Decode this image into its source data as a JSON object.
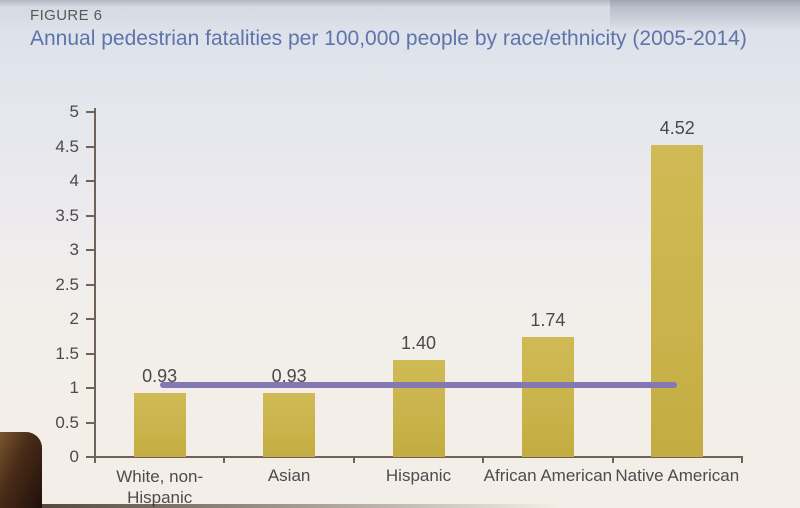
{
  "figure": {
    "label": "FIGURE 6",
    "title": "Annual pedestrian fatalities per 100,000 people by race/ethnicity (2005-2014)"
  },
  "colors": {
    "bar_gold": "#c9b34a",
    "reference_line_purple": "#8478b3",
    "title_blue": "#5e74ab",
    "figure_label_gray": "#58585a",
    "axis_brown_gray": "#6e6259",
    "label_text": "#4b4b4d"
  },
  "chart_data": {
    "type": "bar",
    "title": "Annual pedestrian fatalities per 100,000 people by race/ethnicity (2005-2014)",
    "categories": [
      "White, non-Hispanic",
      "Asian",
      "Hispanic",
      "African American",
      "Native American"
    ],
    "values": [
      0.93,
      0.93,
      1.4,
      1.74,
      4.52
    ],
    "data_labels": [
      "0.93",
      "0.93",
      "1.40",
      "1.74",
      "4.52"
    ],
    "xlabel": "",
    "ylabel": "",
    "ylim": [
      0,
      5
    ],
    "ytick_step": 0.5,
    "ytick_labels": [
      "0",
      "0.5",
      "1",
      "1.5",
      "2",
      "2.5",
      "3",
      "3.5",
      "4",
      "4.5",
      "5"
    ],
    "grid": false,
    "legend": false,
    "reference_line": {
      "value": 1.05,
      "color": "#8478b3",
      "spans": "center of first bar to center of last bar"
    }
  }
}
